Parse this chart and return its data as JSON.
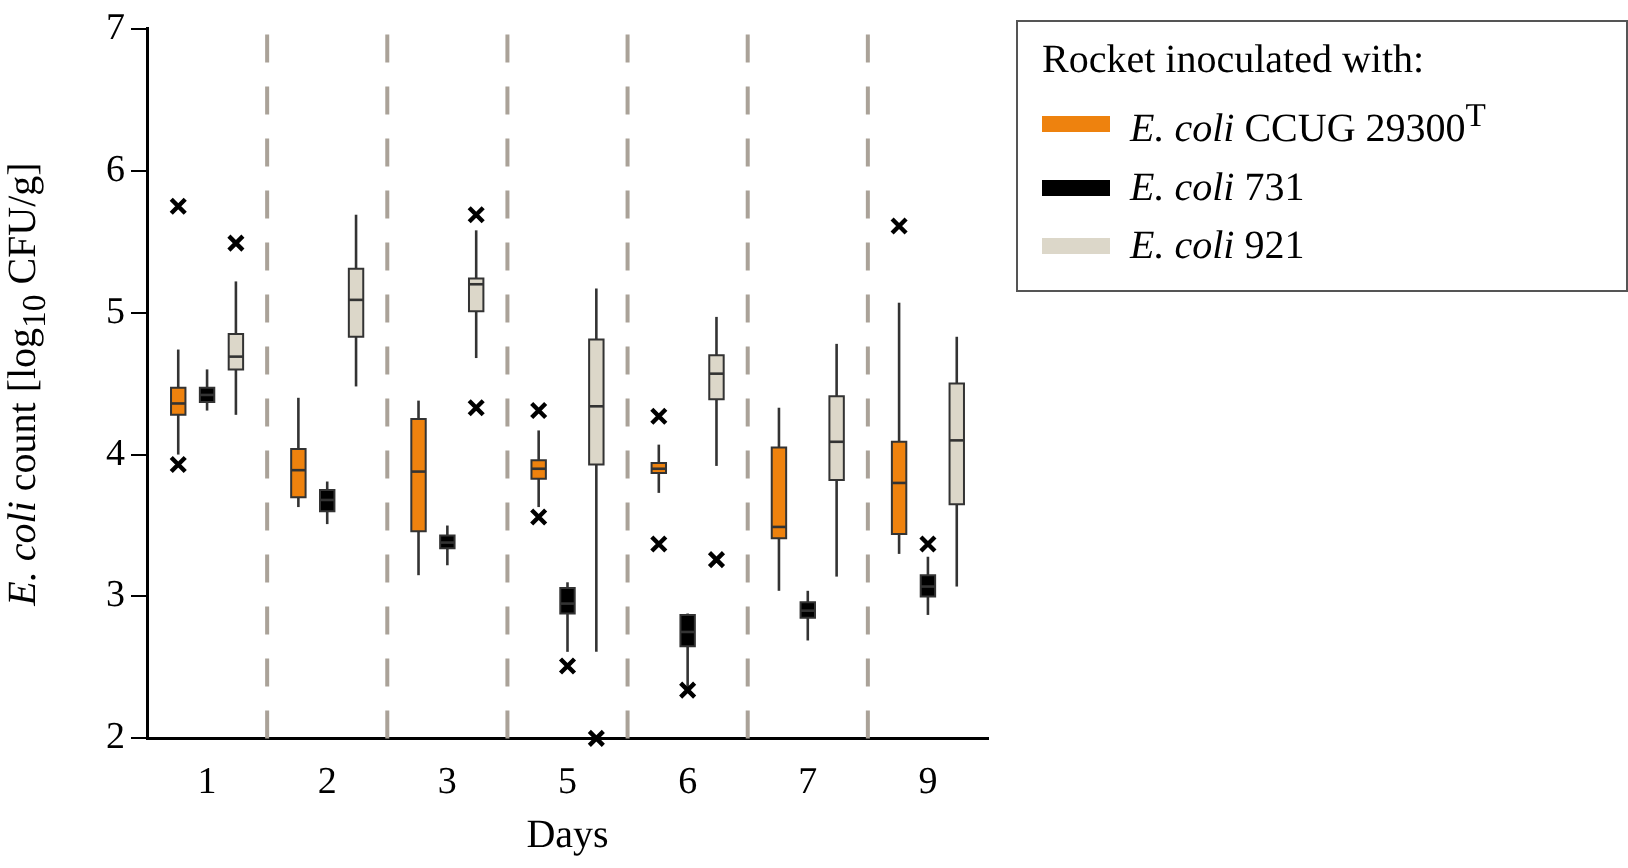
{
  "chart_data": {
    "type": "box",
    "xlabel": "Days",
    "ylabel": "E. coli count [log$_{10}$ CFU/g]",
    "legend_title": "Rocket inoculated with:",
    "legend": "top right",
    "grid": "x",
    "categories": [
      "1",
      "2",
      "3",
      "5",
      "6",
      "7",
      "9"
    ],
    "ylim": [
      2,
      7
    ],
    "yticks": [
      2,
      3,
      4,
      5,
      6,
      7
    ],
    "series": [
      {
        "name": "E. coli CCUG 29300$^{T}$",
        "color": "#ee820e",
        "boxes": [
          {
            "low": 4.0,
            "q1": 4.28,
            "median": 4.36,
            "q3": 4.47,
            "high": 4.74,
            "outliers": [
              5.75,
              3.93
            ]
          },
          {
            "low": 3.63,
            "q1": 3.7,
            "median": 3.89,
            "q3": 4.04,
            "high": 4.4
          },
          {
            "low": 3.15,
            "q1": 3.46,
            "median": 3.88,
            "q3": 4.25,
            "high": 4.38
          },
          {
            "low": 3.63,
            "q1": 3.83,
            "median": 3.9,
            "q3": 3.96,
            "high": 4.17,
            "outliers": [
              4.31,
              3.56
            ]
          },
          {
            "low": 3.73,
            "q1": 3.87,
            "median": 3.9,
            "q3": 3.94,
            "high": 4.07,
            "outliers": [
              4.27,
              3.37
            ]
          },
          {
            "low": 3.04,
            "q1": 3.41,
            "median": 3.49,
            "q3": 4.05,
            "high": 4.33
          },
          {
            "low": 3.3,
            "q1": 3.44,
            "median": 3.8,
            "q3": 4.09,
            "high": 5.07,
            "outliers": [
              5.61
            ]
          }
        ]
      },
      {
        "name": "E. coli 731",
        "color": "#000000",
        "boxes": [
          {
            "low": 4.31,
            "q1": 4.37,
            "median": 4.42,
            "q3": 4.47,
            "high": 4.6
          },
          {
            "low": 3.51,
            "q1": 3.6,
            "median": 3.68,
            "q3": 3.75,
            "high": 3.81
          },
          {
            "low": 3.22,
            "q1": 3.34,
            "median": 3.38,
            "q3": 3.43,
            "high": 3.5
          },
          {
            "low": 2.61,
            "q1": 2.88,
            "median": 2.95,
            "q3": 3.06,
            "high": 3.1,
            "outliers": [
              2.51
            ]
          },
          {
            "low": 2.35,
            "q1": 2.65,
            "median": 2.75,
            "q3": 2.87,
            "high": 2.88,
            "outliers": [
              2.34
            ]
          },
          {
            "low": 2.69,
            "q1": 2.85,
            "median": 2.9,
            "q3": 2.96,
            "high": 3.04
          },
          {
            "low": 2.87,
            "q1": 3.0,
            "median": 3.07,
            "q3": 3.15,
            "high": 3.28,
            "outliers": [
              3.37
            ]
          }
        ]
      },
      {
        "name": "E. coli 921",
        "color": "#dcd7c9",
        "boxes": [
          {
            "low": 4.28,
            "q1": 4.6,
            "median": 4.69,
            "q3": 4.85,
            "high": 5.22,
            "outliers": [
              5.49
            ]
          },
          {
            "low": 4.48,
            "q1": 4.83,
            "median": 5.09,
            "q3": 5.31,
            "high": 5.69
          },
          {
            "low": 4.68,
            "q1": 5.01,
            "median": 5.2,
            "q3": 5.24,
            "high": 5.58,
            "outliers": [
              5.69,
              4.33
            ]
          },
          {
            "low": 2.61,
            "q1": 3.93,
            "median": 4.34,
            "q3": 4.81,
            "high": 5.17,
            "outliers": [
              2.0
            ]
          },
          {
            "low": 3.92,
            "q1": 4.39,
            "median": 4.57,
            "q3": 4.7,
            "high": 4.97,
            "outliers": [
              3.26
            ]
          },
          {
            "low": 3.14,
            "q1": 3.82,
            "median": 4.09,
            "q3": 4.41,
            "high": 4.78
          },
          {
            "low": 3.07,
            "q1": 3.65,
            "median": 4.1,
            "q3": 4.5,
            "high": 4.83
          }
        ]
      }
    ]
  }
}
